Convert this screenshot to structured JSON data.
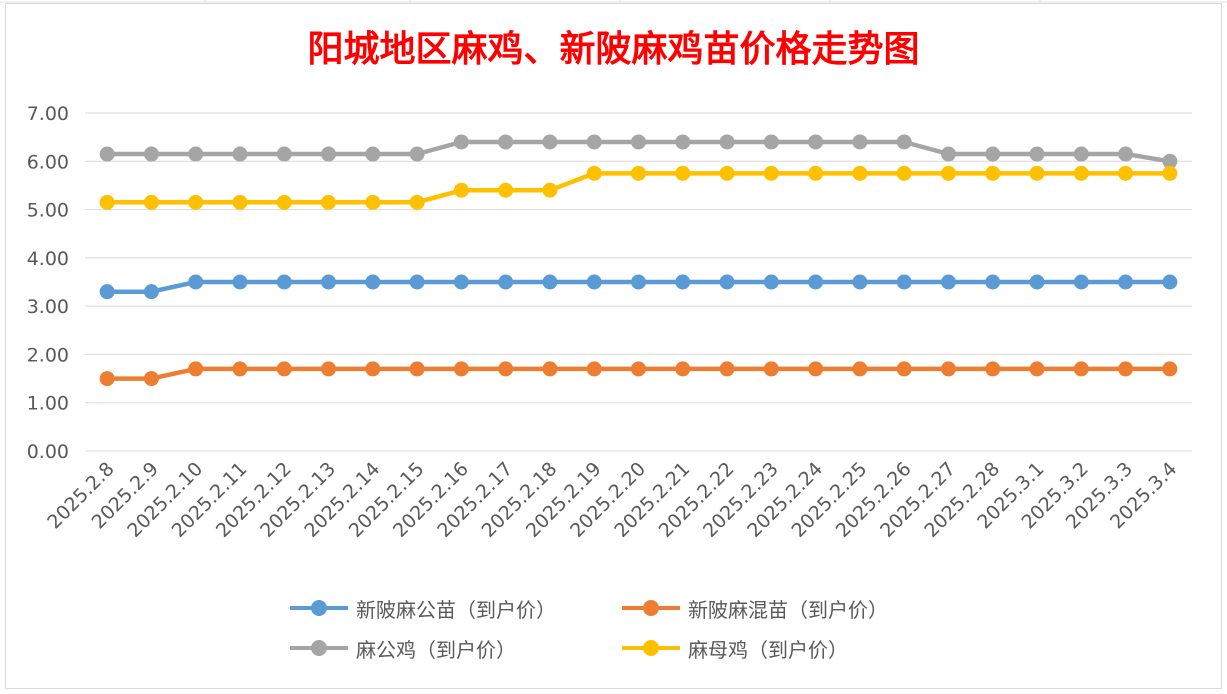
{
  "chart_data": {
    "type": "line",
    "title": "阳城地区麻鸡、新陂麻鸡苗价格走势图",
    "categories": [
      "2025.2.8",
      "2025.2.9",
      "2025.2.10",
      "2025.2.11",
      "2025.2.12",
      "2025.2.13",
      "2025.2.14",
      "2025.2.15",
      "2025.2.16",
      "2025.2.17",
      "2025.2.18",
      "2025.2.19",
      "2025.2.20",
      "2025.2.21",
      "2025.2.22",
      "2025.2.23",
      "2025.2.24",
      "2025.2.25",
      "2025.2.26",
      "2025.2.27",
      "2025.2.28",
      "2025.3.1",
      "2025.3.2",
      "2025.3.3",
      "2025.3.4"
    ],
    "y_ticks": [
      "0.00",
      "1.00",
      "2.00",
      "3.00",
      "4.00",
      "5.00",
      "6.00",
      "7.00"
    ],
    "ylim": [
      0,
      7
    ],
    "grid": true,
    "legend_position": "bottom",
    "series": [
      {
        "name": "新陂麻公苗（到户价）",
        "color": "#5b9bd5",
        "values": [
          3.3,
          3.3,
          3.5,
          3.5,
          3.5,
          3.5,
          3.5,
          3.5,
          3.5,
          3.5,
          3.5,
          3.5,
          3.5,
          3.5,
          3.5,
          3.5,
          3.5,
          3.5,
          3.5,
          3.5,
          3.5,
          3.5,
          3.5,
          3.5,
          3.5
        ]
      },
      {
        "name": "新陂麻混苗（到户价）",
        "color": "#ed7d31",
        "values": [
          1.5,
          1.5,
          1.7,
          1.7,
          1.7,
          1.7,
          1.7,
          1.7,
          1.7,
          1.7,
          1.7,
          1.7,
          1.7,
          1.7,
          1.7,
          1.7,
          1.7,
          1.7,
          1.7,
          1.7,
          1.7,
          1.7,
          1.7,
          1.7,
          1.7
        ]
      },
      {
        "name": "麻公鸡（到户价）",
        "color": "#a5a5a5",
        "values": [
          6.15,
          6.15,
          6.15,
          6.15,
          6.15,
          6.15,
          6.15,
          6.15,
          6.4,
          6.4,
          6.4,
          6.4,
          6.4,
          6.4,
          6.4,
          6.4,
          6.4,
          6.4,
          6.4,
          6.15,
          6.15,
          6.15,
          6.15,
          6.15,
          6.0
        ]
      },
      {
        "name": "麻母鸡（到户价）",
        "color": "#ffc000",
        "values": [
          5.15,
          5.15,
          5.15,
          5.15,
          5.15,
          5.15,
          5.15,
          5.15,
          5.4,
          5.4,
          5.4,
          5.75,
          5.75,
          5.75,
          5.75,
          5.75,
          5.75,
          5.75,
          5.75,
          5.75,
          5.75,
          5.75,
          5.75,
          5.75,
          5.75
        ]
      }
    ]
  }
}
